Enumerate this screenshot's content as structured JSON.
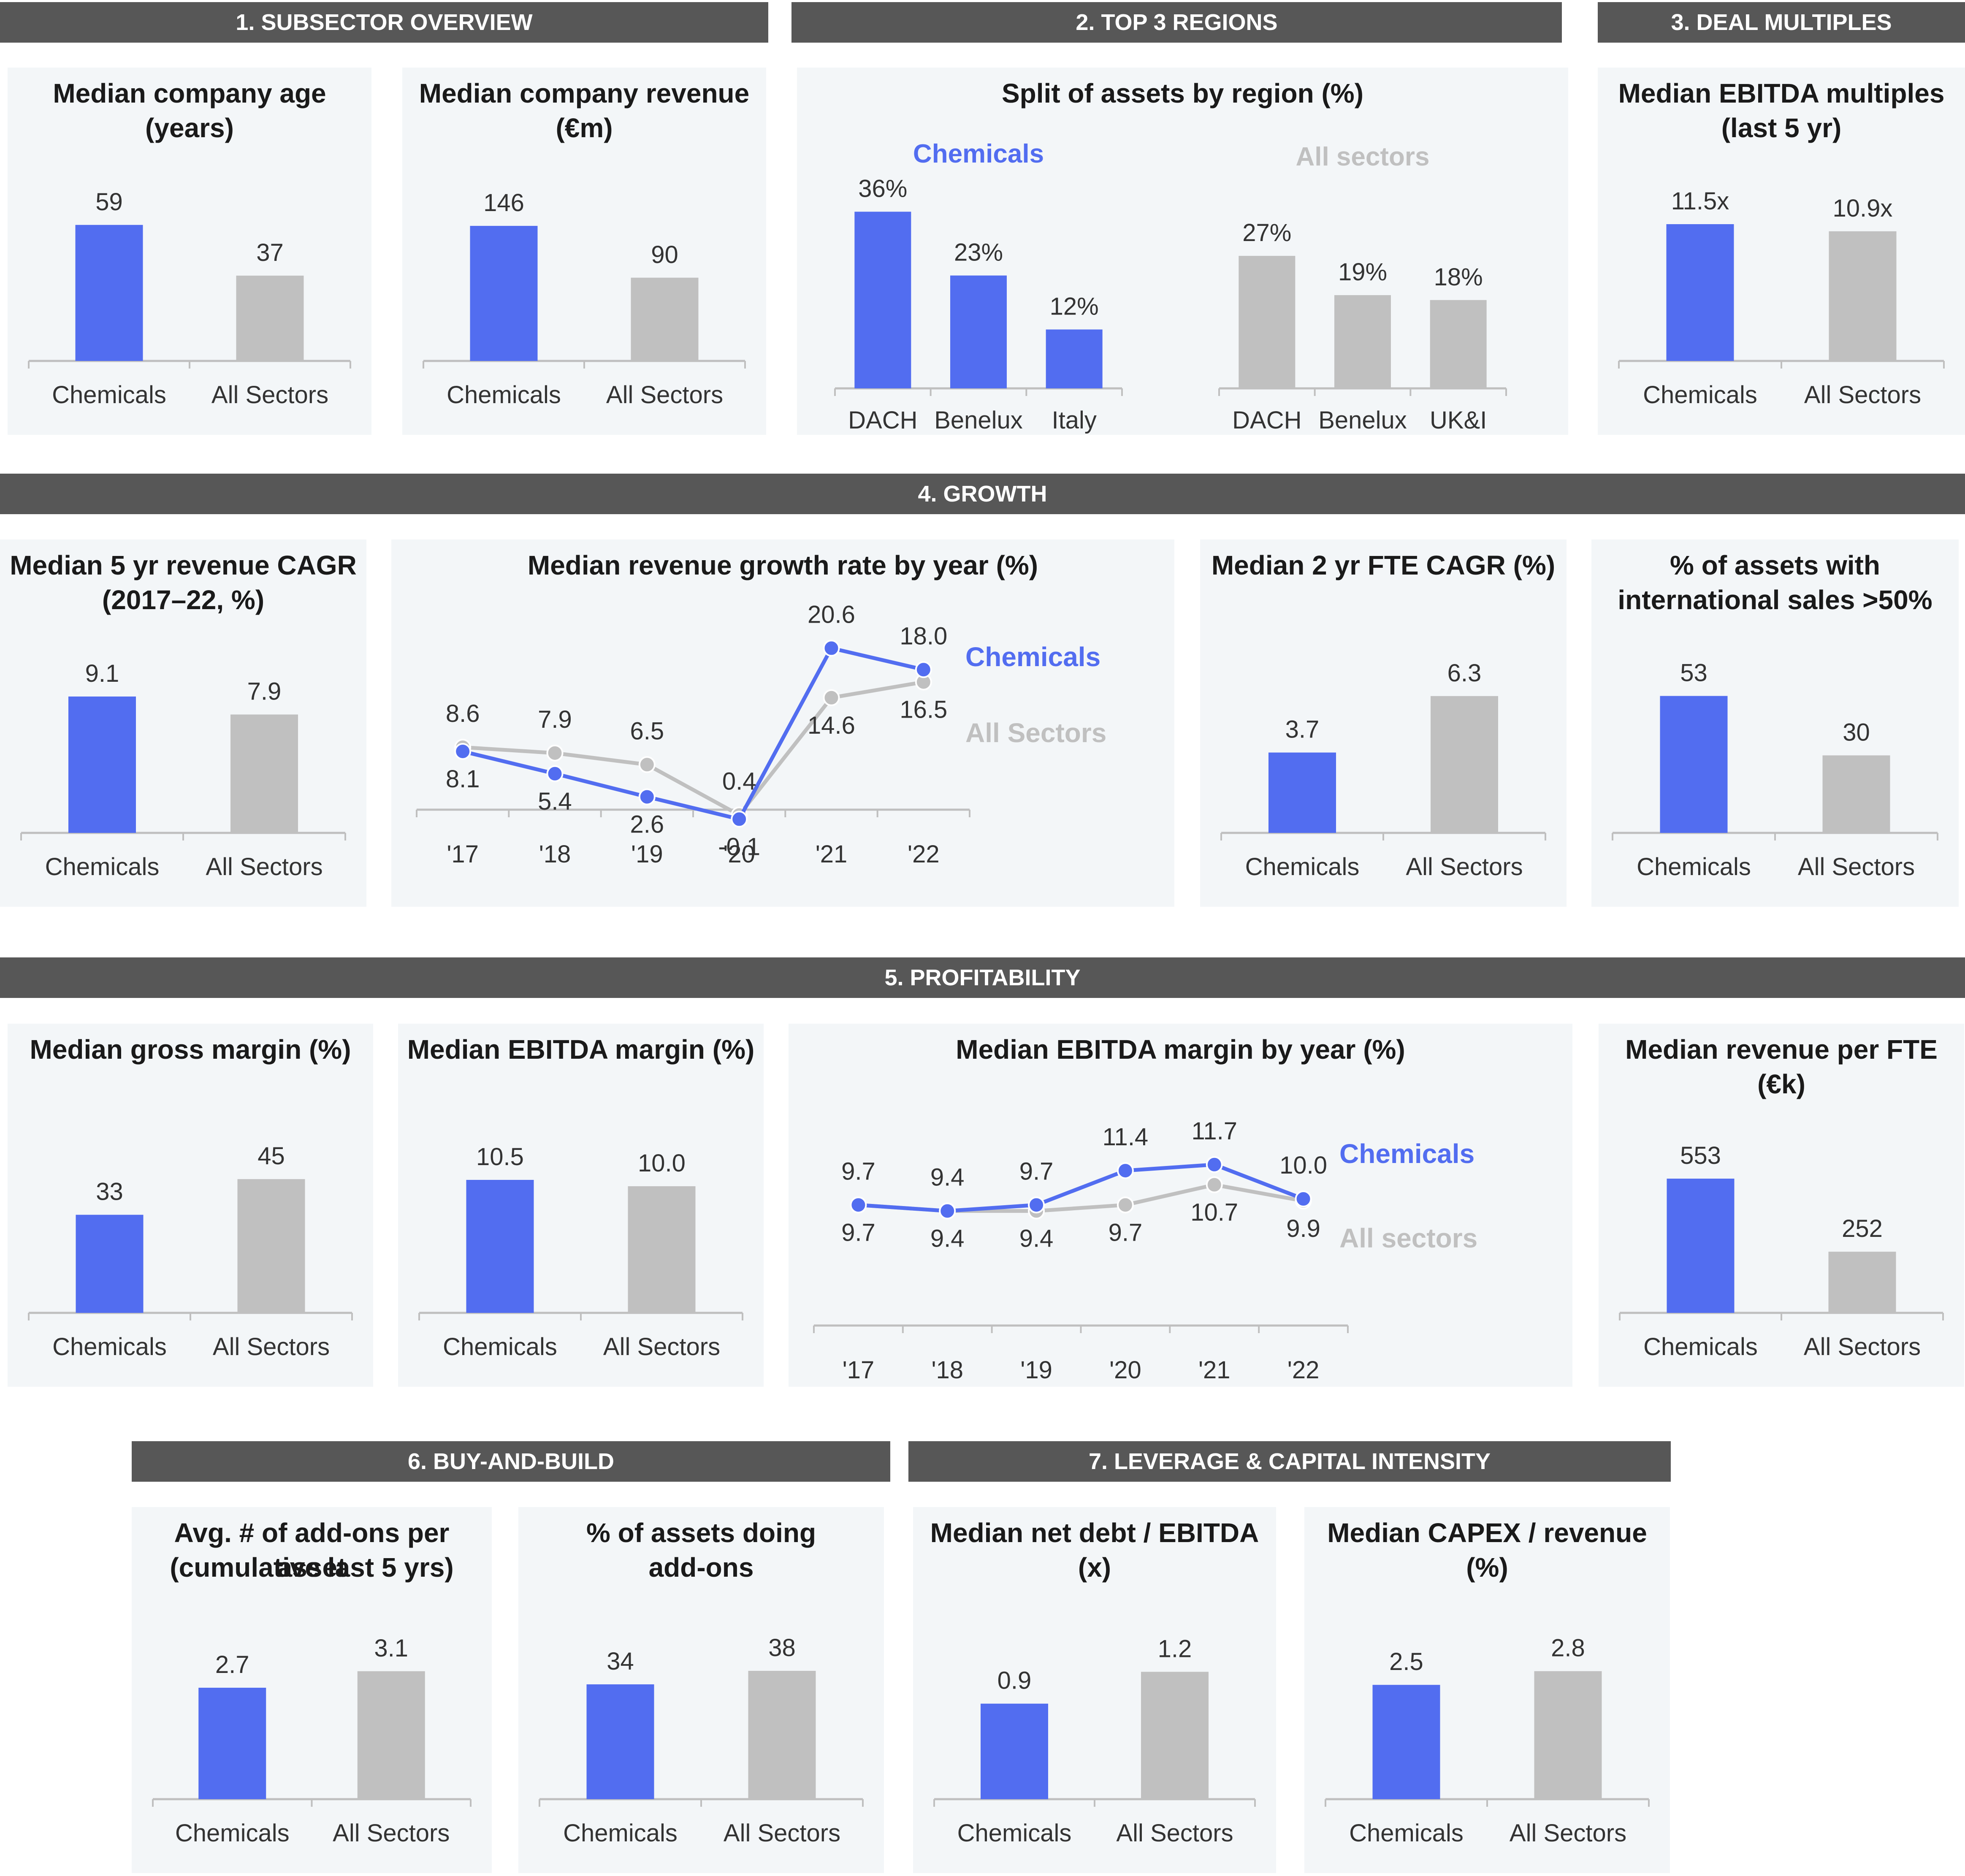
{
  "colors": {
    "chemicals": "#526df0",
    "all": "#c0c0c0",
    "header_bg": "#575757",
    "panel_bg": "#f3f6f8"
  },
  "headers": {
    "h1": "1. SUBSECTOR OVERVIEW",
    "h2": "2. TOP 3 REGIONS",
    "h3": "3. DEAL MULTIPLES",
    "h4": "4. GROWTH",
    "h5": "5.  PROFITABILITY",
    "h6": "6. BUY-AND-BUILD",
    "h7": "7. LEVERAGE & CAPITAL INTENSITY"
  },
  "chart_data": [
    {
      "id": "age",
      "type": "bar",
      "title": "Median company age (years)",
      "title_lines": [
        "Median company age",
        "(years)"
      ],
      "categories": [
        "Chemicals",
        "All Sectors"
      ],
      "values": [
        59,
        37
      ],
      "labels": [
        "59",
        "37"
      ],
      "ylim": [
        0,
        65
      ]
    },
    {
      "id": "revenue",
      "type": "bar",
      "title": "Median company revenue (€m)",
      "title_lines": [
        "Median company revenue",
        "(€m)"
      ],
      "categories": [
        "Chemicals",
        "All Sectors"
      ],
      "values": [
        146,
        90
      ],
      "labels": [
        "146",
        "90"
      ],
      "ylim": [
        0,
        162
      ]
    },
    {
      "id": "regions",
      "type": "bar",
      "title": "Split of assets by region (%)",
      "title_lines": [
        "Split of assets by region (%)"
      ],
      "series": [
        {
          "name": "Chemicals",
          "categories": [
            "DACH",
            "Benelux",
            "Italy"
          ],
          "values": [
            36,
            23,
            12
          ],
          "labels": [
            "36%",
            "23%",
            "12%"
          ]
        },
        {
          "name": "All sectors",
          "categories": [
            "DACH",
            "Benelux",
            "UK&I"
          ],
          "values": [
            27,
            19,
            18
          ],
          "labels": [
            "27%",
            "19%",
            "18%"
          ]
        }
      ],
      "ylim": [
        0,
        40
      ]
    },
    {
      "id": "ebitda_mult",
      "type": "bar",
      "title": "Median EBITDA multiples (last 5 yr)",
      "title_lines": [
        "Median EBITDA multiples",
        "(last 5 yr)"
      ],
      "categories": [
        "Chemicals",
        "All Sectors"
      ],
      "values": [
        11.5,
        10.9
      ],
      "labels": [
        "11.5x",
        "10.9x"
      ],
      "ylim": [
        0,
        12.6
      ]
    },
    {
      "id": "rev_cagr",
      "type": "bar",
      "title": "Median 5 yr revenue CAGR (2017–22, %)",
      "title_lines": [
        "Median 5 yr revenue CAGR",
        "(2017–22, %)"
      ],
      "categories": [
        "Chemicals",
        "All Sectors"
      ],
      "values": [
        9.1,
        7.9
      ],
      "labels": [
        "9.1",
        "7.9"
      ],
      "ylim": [
        0,
        10
      ]
    },
    {
      "id": "rev_growth",
      "type": "line",
      "title": "Median revenue growth rate by year (%)",
      "x": [
        "'17",
        "'18",
        "'19",
        "'20",
        "'21",
        "'22"
      ],
      "series": [
        {
          "name": "Chemicals",
          "values": [
            8.1,
            5.4,
            2.6,
            -0.1,
            20.6,
            18.0
          ],
          "labels": [
            "8.1",
            "5.4",
            "2.6",
            "-0.1",
            "20.6",
            "18.0"
          ]
        },
        {
          "name": "All Sectors",
          "values": [
            8.6,
            7.9,
            6.5,
            0.4,
            14.6,
            16.5
          ],
          "labels": [
            "8.6",
            "7.9",
            "6.5",
            "0.4",
            "14.6",
            "16.5"
          ]
        }
      ],
      "ylim": [
        -1,
        22
      ]
    },
    {
      "id": "fte_cagr",
      "type": "bar",
      "title": "Median 2 yr FTE CAGR (%)",
      "title_lines": [
        "Median 2 yr FTE CAGR (%)"
      ],
      "categories": [
        "Chemicals",
        "All Sectors"
      ],
      "values": [
        3.7,
        6.3
      ],
      "labels": [
        "3.7",
        "6.3"
      ],
      "ylim": [
        0,
        6.9
      ]
    },
    {
      "id": "intl_sales",
      "type": "bar",
      "title": "% of assets with international sales >50%",
      "title_lines": [
        "% of assets with",
        "international sales >50%"
      ],
      "categories": [
        "Chemicals",
        "All Sectors"
      ],
      "values": [
        53,
        30
      ],
      "labels": [
        "53",
        "30"
      ],
      "ylim": [
        0,
        58
      ]
    },
    {
      "id": "gross_margin",
      "type": "bar",
      "title": "Median gross margin (%)",
      "title_lines": [
        "Median gross margin (%)"
      ],
      "categories": [
        "Chemicals",
        "All Sectors"
      ],
      "values": [
        33,
        45
      ],
      "labels": [
        "33",
        "45"
      ],
      "ylim": [
        0,
        49
      ]
    },
    {
      "id": "ebitda_margin",
      "type": "bar",
      "title": "Median EBITDA margin (%)",
      "title_lines": [
        "Median EBITDA margin (%)"
      ],
      "categories": [
        "Chemicals",
        "All Sectors"
      ],
      "values": [
        10.5,
        10.0
      ],
      "labels": [
        "10.5",
        "10.0"
      ],
      "ylim": [
        0,
        11.5
      ]
    },
    {
      "id": "ebitda_year",
      "type": "line",
      "title": "Median EBITDA margin by year (%)",
      "x": [
        "'17",
        "'18",
        "'19",
        "'20",
        "'21",
        "'22"
      ],
      "series": [
        {
          "name": "Chemicals",
          "values": [
            9.7,
            9.4,
            9.7,
            11.4,
            11.7,
            10.0
          ],
          "labels": [
            "9.7",
            "9.4",
            "9.7",
            "11.4",
            "11.7",
            "10.0"
          ]
        },
        {
          "name": "All sectors",
          "values": [
            9.7,
            9.4,
            9.4,
            9.7,
            10.7,
            9.9
          ],
          "labels": [
            "9.7",
            "9.4",
            "9.4",
            "9.7",
            "10.7",
            "9.9"
          ]
        }
      ],
      "ylim": [
        5.5,
        14.5
      ]
    },
    {
      "id": "rev_fte",
      "type": "bar",
      "title": "Median revenue per FTE (€k)",
      "title_lines": [
        "Median revenue per FTE",
        "(€k)"
      ],
      "categories": [
        "Chemicals",
        "All Sectors"
      ],
      "values": [
        553,
        252
      ],
      "labels": [
        "553",
        "252"
      ],
      "ylim": [
        0,
        600
      ]
    },
    {
      "id": "addons",
      "type": "bar",
      "title": "Avg. # of add-ons per asset (cumulative last 5 yrs)",
      "title_lines": [
        "Avg. # of add-ons per asset",
        "(cumulative last 5 yrs)"
      ],
      "categories": [
        "Chemicals",
        "All Sectors"
      ],
      "values": [
        2.7,
        3.1
      ],
      "labels": [
        "2.7",
        "3.1"
      ],
      "ylim": [
        0,
        3.6
      ]
    },
    {
      "id": "addon_share",
      "type": "bar",
      "title": "% of assets doing add-ons",
      "title_lines": [
        "% of assets doing",
        "add-ons"
      ],
      "categories": [
        "Chemicals",
        "All Sectors"
      ],
      "values": [
        34,
        38
      ],
      "labels": [
        "34",
        "38"
      ],
      "ylim": [
        0,
        44
      ]
    },
    {
      "id": "net_debt",
      "type": "bar",
      "title": "Median net debt / EBITDA (x)",
      "title_lines": [
        "Median net debt / EBITDA",
        "(x)"
      ],
      "categories": [
        "Chemicals",
        "All Sectors"
      ],
      "values": [
        0.9,
        1.2
      ],
      "labels": [
        "0.9",
        "1.2"
      ],
      "ylim": [
        0,
        1.4
      ]
    },
    {
      "id": "capex",
      "type": "bar",
      "title": "Median CAPEX / revenue (%)",
      "title_lines": [
        "Median CAPEX / revenue",
        "(%)"
      ],
      "categories": [
        "Chemicals",
        "All Sectors"
      ],
      "values": [
        2.5,
        2.8
      ],
      "labels": [
        "2.5",
        "2.8"
      ],
      "ylim": [
        0,
        3.25
      ]
    }
  ]
}
